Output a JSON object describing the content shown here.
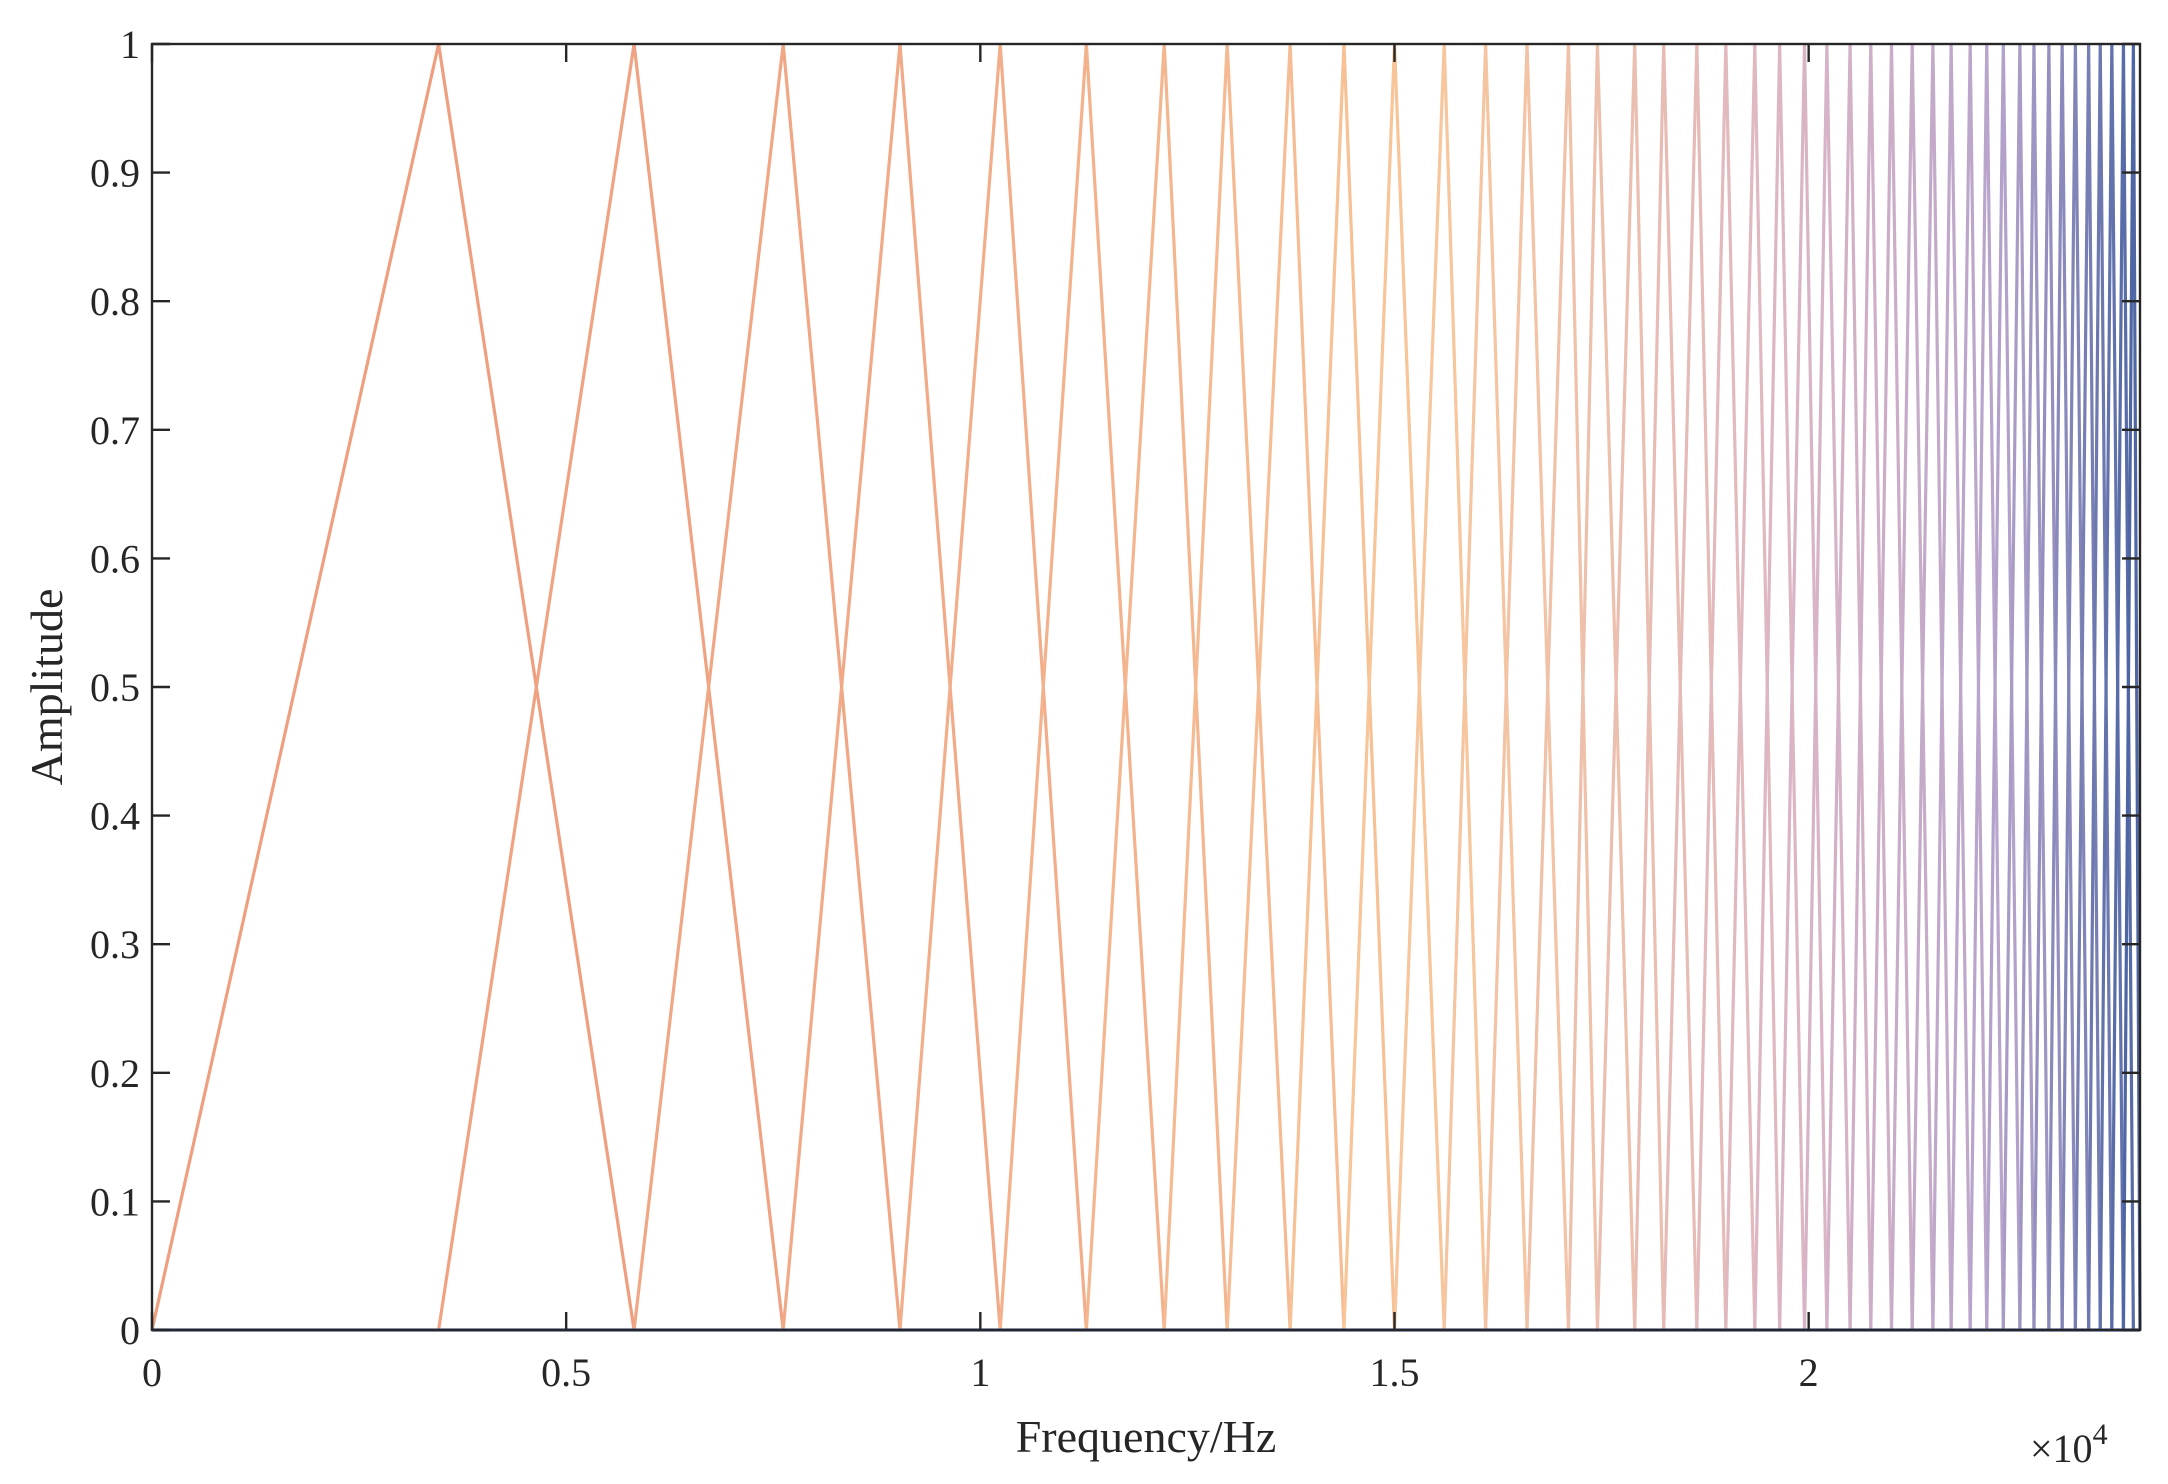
{
  "chart_data": {
    "type": "line",
    "description_kind": "triangular filter bank",
    "xlabel": "Frequency/Hz",
    "ylabel": "Amplitude",
    "x_multiplier_text": "×10",
    "x_multiplier_exponent": "4",
    "xlim": [
      0,
      24000
    ],
    "ylim": [
      0,
      1
    ],
    "xticks": [
      0,
      5000,
      10000,
      15000,
      20000
    ],
    "xtick_labels": [
      "0",
      "0.5",
      "1",
      "1.5",
      "2"
    ],
    "yticks": [
      0,
      0.1,
      0.2,
      0.3,
      0.4,
      0.5,
      0.6,
      0.7,
      0.8,
      0.9,
      1
    ],
    "ytick_labels": [
      "0",
      "0.1",
      "0.2",
      "0.3",
      "0.4",
      "0.5",
      "0.6",
      "0.7",
      "0.8",
      "0.9",
      "1"
    ],
    "grid": false,
    "filter_edges_hz": [
      0,
      3460,
      5820,
      7620,
      9030,
      10240,
      11280,
      12220,
      12980,
      13740,
      14390,
      15000,
      15600,
      16100,
      16600,
      17100,
      17450,
      17900,
      18250,
      18650,
      19000,
      19350,
      19650,
      19950,
      20220,
      20500,
      20750,
      21000,
      21250,
      21500,
      21720,
      21950,
      22150,
      22350,
      22550,
      22720,
      22900,
      23060,
      23220,
      23380,
      23520,
      23660,
      23800,
      23920,
      24000
    ],
    "color_stops": [
      "#EE9F80",
      "#F8C79A",
      "#DDB6C4",
      "#B7A4CC",
      "#4E66A4"
    ]
  }
}
